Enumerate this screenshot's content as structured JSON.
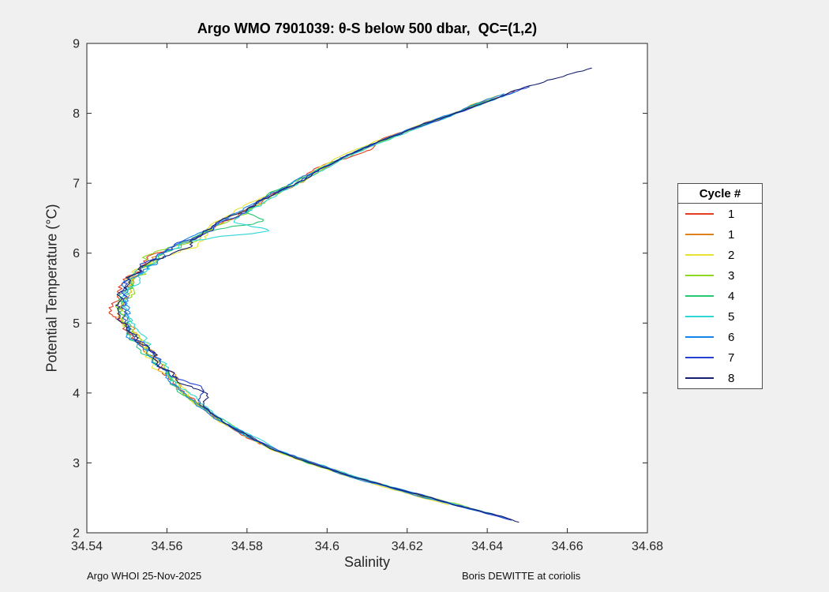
{
  "figure": {
    "background": "#f0f0f0",
    "plot_background": "#ffffff",
    "axis_color": "#262626",
    "footer_left": "Argo WHOI 25-Nov-2025",
    "footer_right": "Boris DEWITTE at coriolis"
  },
  "chart_data": {
    "type": "line",
    "title": "Argo WMO 7901039: θ-S below 500 dbar,  QC=(1,2)",
    "xlabel": "Salinity",
    "ylabel": "Potential Temperature (°C)",
    "legend_title": "Cycle #",
    "legend_position": "right-outside",
    "grid": false,
    "xlim": [
      34.54,
      34.68
    ],
    "ylim": [
      2,
      9
    ],
    "xticks": [
      34.54,
      34.56,
      34.58,
      34.6,
      34.62,
      34.64,
      34.66,
      34.68
    ],
    "xtick_labels": [
      "34.54",
      "34.56",
      "34.58",
      "34.6",
      "34.62",
      "34.64",
      "34.66",
      "34.68"
    ],
    "yticks": [
      2,
      3,
      4,
      5,
      6,
      7,
      8,
      9
    ],
    "ytick_labels": [
      "2",
      "3",
      "4",
      "5",
      "6",
      "7",
      "8",
      "9"
    ],
    "backbone": {
      "comment": "shared theta-S relation all cycles follow; theta in degC, salinity in psu",
      "theta": [
        8.65,
        8.4,
        8.2,
        8.0,
        7.8,
        7.6,
        7.4,
        7.2,
        7.0,
        6.8,
        6.6,
        6.4,
        6.2,
        6.0,
        5.8,
        5.6,
        5.4,
        5.2,
        5.0,
        4.8,
        4.6,
        4.4,
        4.2,
        4.0,
        3.8,
        3.6,
        3.4,
        3.2,
        3.0,
        2.8,
        2.6,
        2.4,
        2.2,
        2.1
      ],
      "salinity": [
        34.666,
        34.651,
        34.641,
        34.632,
        34.622,
        34.613,
        34.605,
        34.598,
        34.592,
        34.585,
        34.579,
        34.572,
        34.566,
        34.559,
        34.554,
        34.551,
        34.5495,
        34.549,
        34.5495,
        34.552,
        34.5555,
        34.5585,
        34.5615,
        34.565,
        34.569,
        34.5735,
        34.5795,
        34.5865,
        34.596,
        34.6065,
        34.619,
        34.632,
        34.6455,
        34.651
      ]
    },
    "series": [
      {
        "name": "1",
        "color": "#e23b1e",
        "seed": 11,
        "bias": -0.0004,
        "theta_max": 8.32,
        "theta_min": 2.5,
        "bumps": [
          {
            "t": 5.15,
            "ds": -0.002,
            "w": 0.1
          },
          {
            "t": 7.45,
            "ds": 0.003,
            "w": 0.08
          }
        ]
      },
      {
        "name": "1",
        "color": "#e0821c",
        "seed": 22,
        "bias": 0.0002,
        "theta_max": 8.2,
        "theta_min": 2.45,
        "bumps": []
      },
      {
        "name": "2",
        "color": "#e8e332",
        "seed": 33,
        "bias": -0.0007,
        "theta_max": 8.26,
        "theta_min": 2.4,
        "bumps": [
          {
            "t": 6.1,
            "ds": 0.006,
            "w": 0.1
          }
        ]
      },
      {
        "name": "3",
        "color": "#8fd822",
        "seed": 44,
        "bias": 0.0005,
        "theta_max": 8.18,
        "theta_min": 2.35,
        "bumps": [
          {
            "t": 5.95,
            "ds": -0.003,
            "w": 0.08
          }
        ]
      },
      {
        "name": "4",
        "color": "#25c870",
        "seed": 55,
        "bias": -0.0002,
        "theta_max": 8.22,
        "theta_min": 2.3,
        "bumps": [
          {
            "t": 6.45,
            "ds": 0.009,
            "w": 0.07
          }
        ]
      },
      {
        "name": "5",
        "color": "#2fd6d6",
        "seed": 66,
        "bias": 0.0008,
        "theta_max": 8.3,
        "theta_min": 2.25,
        "bumps": [
          {
            "t": 6.32,
            "ds": 0.014,
            "w": 0.06
          }
        ]
      },
      {
        "name": "6",
        "color": "#1484ec",
        "seed": 77,
        "bias": -0.0005,
        "theta_max": 8.28,
        "theta_min": 2.2,
        "bumps": []
      },
      {
        "name": "7",
        "color": "#2340cf",
        "seed": 88,
        "bias": 0.0003,
        "theta_max": 8.38,
        "theta_min": 2.17,
        "bumps": [
          {
            "t": 4.05,
            "ds": 0.005,
            "w": 0.08
          }
        ]
      },
      {
        "name": "8",
        "color": "#161f6e",
        "seed": 99,
        "bias": 0.0,
        "theta_max": 8.65,
        "theta_min": 2.15,
        "bumps": [
          {
            "t": 4.0,
            "ds": 0.004,
            "w": 0.1
          },
          {
            "t": 6.05,
            "ds": 0.004,
            "w": 0.1
          }
        ]
      }
    ]
  }
}
